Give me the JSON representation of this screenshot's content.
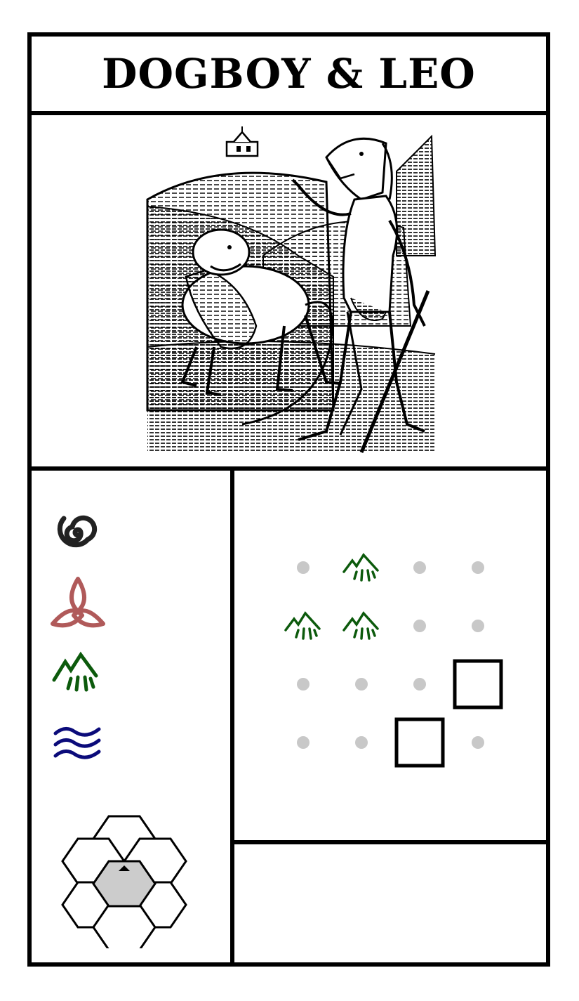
{
  "card": {
    "title": "DOGBOY & LEO",
    "illustration": {
      "subject": "woodcut-dogboy-and-lion"
    }
  },
  "symbols": [
    {
      "name": "spiral",
      "color": "#222222"
    },
    {
      "name": "triquetra",
      "color": "#b05a5a"
    },
    {
      "name": "mountain",
      "color": "#0c5a0c"
    },
    {
      "name": "water",
      "color": "#0b0b7a"
    }
  ],
  "pattern_grid": {
    "rows": 4,
    "cols": 4,
    "cells": [
      [
        "dot",
        "mountain",
        "dot",
        "dot"
      ],
      [
        "mountain",
        "mountain",
        "dot",
        "dot"
      ],
      [
        "dot",
        "dot",
        "dot",
        "square"
      ],
      [
        "dot",
        "dot",
        "square",
        "dot"
      ]
    ],
    "dot_color": "#c8c8c8",
    "mountain_color": "#0c5a0c"
  },
  "hex_map": {
    "center_marker": "triangle-up",
    "center_fill": "#cccccc"
  }
}
